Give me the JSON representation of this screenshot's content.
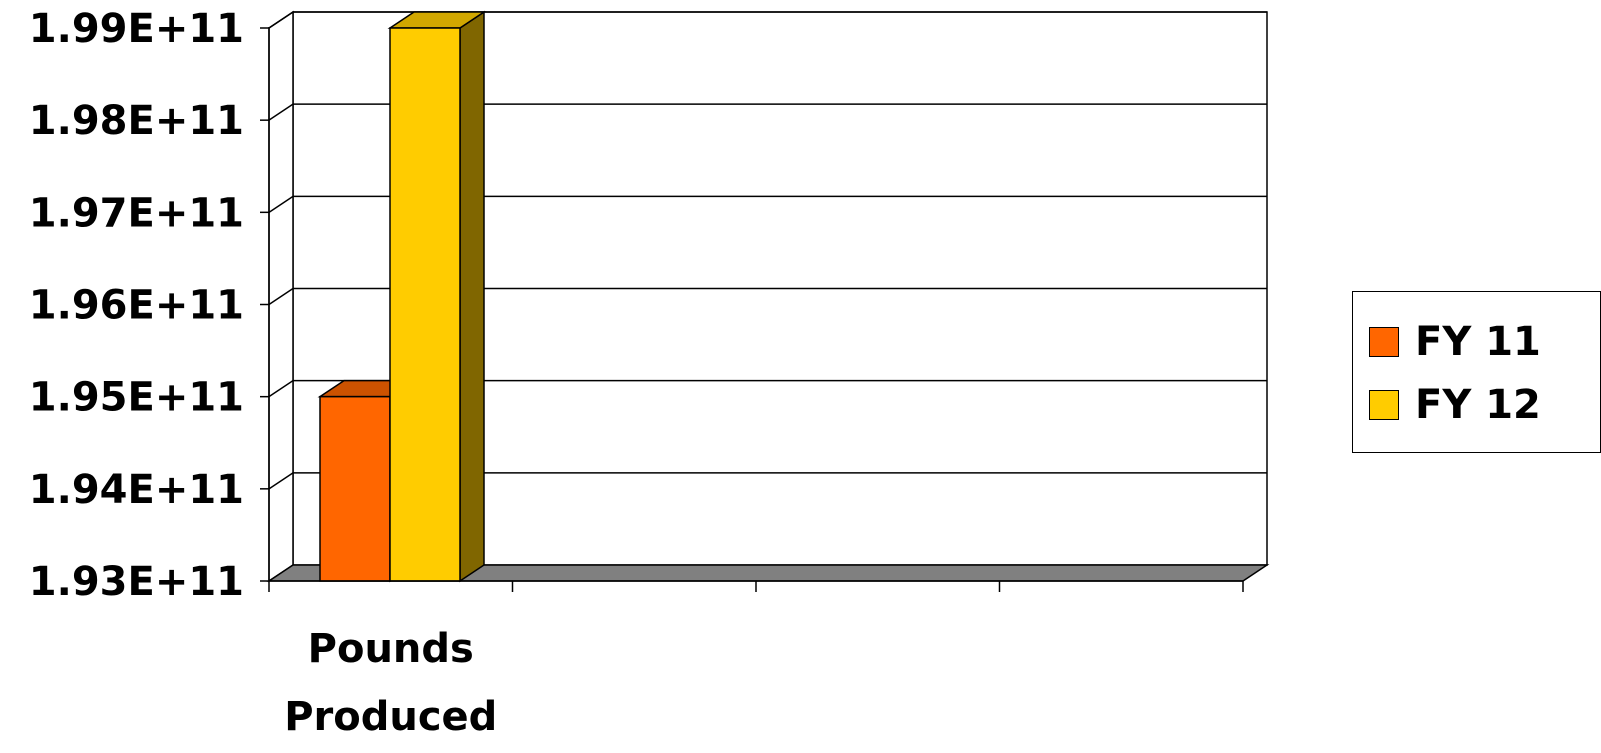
{
  "chart_data": {
    "type": "bar",
    "categories": [
      "Pounds Produced"
    ],
    "category_label_lines": [
      "Pounds",
      "Produced"
    ],
    "series": [
      {
        "name": "FY 11",
        "values": [
          195000000000.0
        ],
        "color": "#FF6600"
      },
      {
        "name": "FY 12",
        "values": [
          199000000000.0
        ],
        "color": "#FFCC00"
      }
    ],
    "ylim": [
      193000000000.0,
      199000000000.0
    ],
    "y_ticks": [
      "1.93E+11",
      "1.94E+11",
      "1.95E+11",
      "1.96E+11",
      "1.97E+11",
      "1.98E+11",
      "1.99E+11"
    ],
    "grid": true,
    "legend_position": "right",
    "style": "3d-column",
    "title": "",
    "xlabel": "",
    "ylabel": ""
  }
}
